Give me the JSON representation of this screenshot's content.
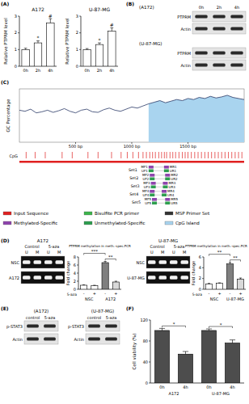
{
  "panel_labels": [
    "(A)",
    "(B)",
    "(C)",
    "(D)",
    "(E)",
    "(F)"
  ],
  "chart_data": [
    {
      "type": "bar",
      "title": "A172",
      "y_label": "Relative PTPRM level",
      "categories": [
        "0h",
        "2h",
        "4h"
      ],
      "values": [
        1.0,
        1.4,
        2.6
      ],
      "errors": [
        0.08,
        0.12,
        0.25
      ],
      "color": "#ffffff",
      "ylim": [
        0,
        3
      ],
      "yticks": [
        0,
        1,
        2,
        3
      ],
      "significance": [
        {
          "index": 1,
          "text": "*"
        },
        {
          "index": 2,
          "text": "#"
        }
      ]
    },
    {
      "type": "bar",
      "title": "U-87-MG",
      "y_label": "Relative PTPRM level",
      "categories": [
        "0h",
        "2h",
        "4h"
      ],
      "values": [
        1.0,
        1.3,
        2.1
      ],
      "errors": [
        0.06,
        0.1,
        0.2
      ],
      "color": "#ffffff",
      "ylim": [
        0,
        3
      ],
      "yticks": [
        0,
        1,
        2,
        3
      ],
      "significance": [
        {
          "index": 1,
          "text": "*"
        },
        {
          "index": 2,
          "text": "#"
        }
      ]
    },
    {
      "type": "line",
      "y_label": "GC Percentage",
      "x": [
        0,
        50,
        100,
        150,
        200,
        250,
        300,
        350,
        400,
        450,
        500,
        550,
        600,
        650,
        700,
        750,
        800,
        850,
        900,
        950,
        1000,
        1050,
        1100,
        1150,
        1200,
        1250,
        1300,
        1350,
        1400,
        1450,
        1500,
        1550,
        1600,
        1650,
        1700,
        1750,
        1800,
        1850,
        1900,
        1950,
        2000
      ],
      "values": [
        0.6,
        0.58,
        0.62,
        0.55,
        0.57,
        0.6,
        0.56,
        0.59,
        0.63,
        0.58,
        0.55,
        0.6,
        0.62,
        0.57,
        0.56,
        0.61,
        0.64,
        0.6,
        0.58,
        0.62,
        0.66,
        0.64,
        0.68,
        0.72,
        0.75,
        0.78,
        0.74,
        0.77,
        0.8,
        0.78,
        0.82,
        0.8,
        0.84,
        0.82,
        0.86,
        0.83,
        0.85,
        0.88,
        0.84,
        0.82,
        0.8
      ],
      "color": "#2b3a67",
      "xlim": [
        0,
        2000
      ],
      "ylim": [
        0,
        1
      ],
      "xticks": [
        {
          "value": 500,
          "label": "500 bp"
        },
        {
          "value": 1000,
          "label": "1000 bp"
        },
        {
          "value": 1500,
          "label": "1500 bp"
        }
      ],
      "tick_labels": "x",
      "highlight": {
        "from": 1150,
        "to": 2000
      },
      "cpg_label": "CpG",
      "cpg_sites": [
        60,
        140,
        230,
        380,
        470,
        610,
        700,
        820,
        905,
        960,
        1010,
        1060,
        1100,
        1130,
        1160,
        1185,
        1210,
        1240,
        1265,
        1290,
        1310,
        1340,
        1365,
        1390,
        1420,
        1450,
        1475,
        1500,
        1530,
        1560,
        1590,
        1620,
        1650,
        1680,
        1710,
        1740,
        1770,
        1800,
        1830,
        1860,
        1890,
        1920,
        1950,
        1980
      ],
      "primer_sets": [
        {
          "name": "Set1",
          "start": 1150,
          "end": 1330,
          "m": [
            "MF1",
            "MR1"
          ],
          "u": [
            "UF1",
            "UR1"
          ]
        },
        {
          "name": "Set2",
          "start": 1160,
          "end": 1340,
          "m": [
            "MF2",
            "MR2"
          ],
          "u": [
            "UF2",
            "UR2"
          ]
        },
        {
          "name": "Set3",
          "start": 1170,
          "end": 1320,
          "m": [
            "MF3",
            "MR3"
          ],
          "u": [
            "UF3",
            "UR3"
          ]
        },
        {
          "name": "Set4",
          "start": 1160,
          "end": 1310,
          "m": [
            "MF4",
            "MR4"
          ],
          "u": [
            "UF4",
            "UR4"
          ]
        },
        {
          "name": "Set5",
          "start": 1180,
          "end": 1340,
          "m": [
            "MF5",
            "MR5"
          ],
          "u": [
            "UF5",
            "UR5"
          ]
        }
      ],
      "legend_items": [
        {
          "label": "Input Sequence",
          "color": "#e02020"
        },
        {
          "label": "Bisulfite PCR primer",
          "color": "#3cb44b"
        },
        {
          "label": "MSP Primer Set",
          "color": "#333333"
        },
        {
          "label": "Methylated-Specific",
          "color": "#8e44ad"
        },
        {
          "label": "Unmethylated-Specific",
          "color": "#2e9e4f"
        },
        {
          "label": "CpG Island",
          "color": "#a9d4ef"
        }
      ]
    },
    {
      "type": "bar",
      "title": "PTPRM methylation in meth.-spec.PCR",
      "y_label": "Fold change",
      "x_label": "5-aza",
      "categories": [
        "-",
        "+",
        "-",
        "+"
      ],
      "groups": [
        {
          "label": "NSC",
          "from": 0,
          "to": 1
        },
        {
          "label": "A172",
          "from": 2,
          "to": 3
        }
      ],
      "values": [
        1.0,
        0.9,
        6.6,
        1.8
      ],
      "errors": [
        0.1,
        0.1,
        0.3,
        0.2
      ],
      "colors": [
        "#ffffff",
        "#ffffff",
        "#7f7f7f",
        "#d9d9d9"
      ],
      "ylim": [
        0,
        8
      ],
      "yticks": [
        0,
        2,
        4,
        6,
        8
      ],
      "significance": [
        {
          "from": 2,
          "to": 3,
          "text": "**"
        },
        {
          "from": 0,
          "to": 2,
          "text": "***"
        }
      ]
    },
    {
      "type": "bar",
      "title": "PTPRM methylation in meth.-spec.PCR",
      "y_label": "Fold change",
      "x_label": "5-aza",
      "categories": [
        "-",
        "+",
        "-",
        "+"
      ],
      "groups": [
        {
          "label": "NSC",
          "from": 0,
          "to": 1
        },
        {
          "label": "U-87-MG",
          "from": 2,
          "to": 3
        }
      ],
      "values": [
        1.0,
        1.1,
        4.7,
        1.9
      ],
      "errors": [
        0.1,
        0.1,
        0.3,
        0.2
      ],
      "colors": [
        "#ffffff",
        "#ffffff",
        "#7f7f7f",
        "#d9d9d9"
      ],
      "ylim": [
        0,
        6
      ],
      "yticks": [
        0,
        2,
        4,
        6
      ],
      "significance": [
        {
          "from": 2,
          "to": 3,
          "text": "**"
        },
        {
          "from": 0,
          "to": 2,
          "text": "**"
        }
      ]
    },
    {
      "type": "bar",
      "y_label": "Cell viability (%)",
      "categories": [
        "0h",
        "4h",
        "0h",
        "4h"
      ],
      "groups": [
        {
          "label": "A172",
          "from": 0,
          "to": 1
        },
        {
          "label": "U-87-MG",
          "from": 2,
          "to": 3
        }
      ],
      "values": [
        100,
        55,
        100,
        76
      ],
      "errors": [
        4,
        5,
        3,
        6
      ],
      "color": "#4d4d4d",
      "ylim": [
        0,
        120
      ],
      "yticks": [
        0,
        40,
        80,
        120
      ],
      "significance": [
        {
          "from": 0,
          "to": 1,
          "text": "*"
        },
        {
          "from": 2,
          "to": 3,
          "text": "*"
        }
      ]
    }
  ],
  "blots": [
    {
      "cell": "(A172)",
      "lanes": [
        "0h",
        "2h",
        "4h"
      ],
      "rows": [
        "PTPRM",
        "Actin"
      ]
    },
    {
      "cell": "(U-87-MG)",
      "lanes": [
        null,
        null,
        null
      ],
      "rows": [
        "PTPRM",
        "Actin"
      ]
    },
    {
      "cell": "(A172)",
      "lanes": [
        "control",
        "5-aza"
      ],
      "rows": [
        "p-STAT3",
        "Actin"
      ]
    },
    {
      "cell": "(U-87-MG)",
      "lanes": [
        "control",
        "5-aza"
      ],
      "rows": [
        "p-STAT3",
        "Actin"
      ]
    }
  ],
  "gels": [
    {
      "cell": "A172",
      "conditions": [
        "Control",
        "5-aza"
      ],
      "lanes": [
        "U",
        "M",
        "U",
        "M"
      ],
      "rows": [
        "NSC",
        "A172"
      ]
    },
    {
      "cell": "U-87-MG",
      "conditions": [
        "Control",
        "5-aza"
      ],
      "lanes": [
        "U",
        "M",
        "U",
        "M"
      ],
      "rows": [
        "NSC",
        "U-87-MG"
      ]
    }
  ]
}
